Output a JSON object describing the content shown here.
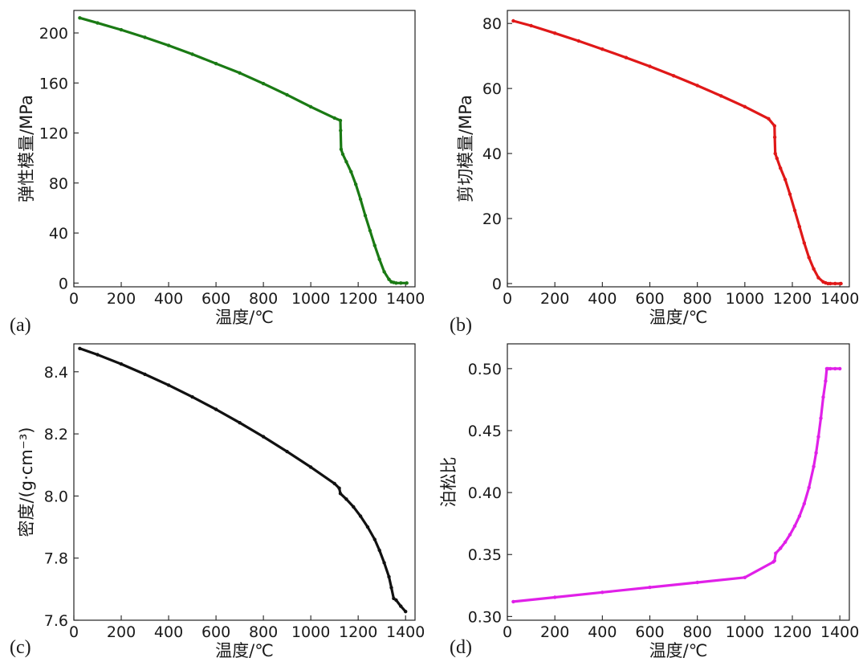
{
  "chart_data": [
    {
      "id": "a",
      "type": "line",
      "panel_label": "(a)",
      "xlabel": "温度/℃",
      "ylabel": "弹性模量/MPa",
      "xlim": [
        0,
        1440
      ],
      "ylim": [
        -3,
        218
      ],
      "xticks": [
        0,
        200,
        400,
        600,
        800,
        1000,
        1200,
        1400
      ],
      "yticks": [
        0,
        40,
        80,
        120,
        160,
        200
      ],
      "color": "#1a7a14",
      "series": [
        {
          "name": "弹性模量",
          "x": [
            25,
            100,
            200,
            300,
            400,
            500,
            600,
            700,
            800,
            900,
            1000,
            1100,
            1125,
            1126,
            1128,
            1135,
            1150,
            1170,
            1190,
            1210,
            1230,
            1250,
            1270,
            1290,
            1310,
            1330,
            1340,
            1350,
            1360,
            1380,
            1405
          ],
          "y": [
            212,
            208,
            202.5,
            196.5,
            190,
            183,
            175.5,
            168,
            159.5,
            150.5,
            141,
            132,
            130,
            122,
            107,
            103,
            97,
            89,
            79,
            67,
            54,
            42,
            30,
            19,
            9,
            3,
            1,
            0.5,
            0,
            0,
            0
          ]
        }
      ]
    },
    {
      "id": "b",
      "type": "line",
      "panel_label": "(b)",
      "xlabel": "温度/℃",
      "ylabel": "剪切模量/MPa",
      "xlim": [
        0,
        1440
      ],
      "ylim": [
        -1,
        84
      ],
      "xticks": [
        0,
        200,
        400,
        600,
        800,
        1000,
        1200,
        1400
      ],
      "yticks": [
        0,
        20,
        40,
        60,
        80
      ],
      "color": "#e01818",
      "series": [
        {
          "name": "剪切模量",
          "x": [
            25,
            100,
            200,
            300,
            400,
            500,
            600,
            700,
            800,
            900,
            1000,
            1100,
            1125,
            1126,
            1128,
            1135,
            1150,
            1170,
            1190,
            1210,
            1230,
            1250,
            1270,
            1290,
            1310,
            1330,
            1340,
            1350,
            1360,
            1380,
            1405
          ],
          "y": [
            80.8,
            79.3,
            77,
            74.6,
            72.1,
            69.5,
            66.8,
            63.9,
            60.9,
            57.7,
            54.4,
            50.7,
            48.5,
            45,
            40,
            38.5,
            35.5,
            32,
            27.5,
            22.5,
            17.5,
            12.5,
            8,
            4.5,
            1.8,
            0.5,
            0.2,
            0,
            0,
            0,
            0
          ]
        }
      ]
    },
    {
      "id": "c",
      "type": "line",
      "panel_label": "(c)",
      "xlabel": "温度/℃",
      "ylabel": "密度/(g·cm⁻³)",
      "xlim": [
        0,
        1440
      ],
      "ylim": [
        7.6,
        8.49
      ],
      "xticks": [
        0,
        200,
        400,
        600,
        800,
        1000,
        1200,
        1400
      ],
      "yticks": [
        7.6,
        7.8,
        8.0,
        8.2,
        8.4
      ],
      "ytick_decimals": 1,
      "color": "#111111",
      "series": [
        {
          "name": "密度",
          "x": [
            25,
            100,
            200,
            300,
            400,
            500,
            600,
            700,
            800,
            900,
            1000,
            1100,
            1120,
            1125,
            1150,
            1180,
            1210,
            1240,
            1270,
            1290,
            1310,
            1330,
            1340,
            1350,
            1360,
            1380,
            1400
          ],
          "y": [
            8.475,
            8.455,
            8.425,
            8.392,
            8.357,
            8.319,
            8.279,
            8.236,
            8.191,
            8.143,
            8.093,
            8.04,
            8.025,
            8.008,
            7.99,
            7.965,
            7.935,
            7.9,
            7.86,
            7.825,
            7.785,
            7.74,
            7.705,
            7.67,
            7.665,
            7.645,
            7.628
          ]
        }
      ]
    },
    {
      "id": "d",
      "type": "line",
      "panel_label": "(d)",
      "xlabel": "温度/℃",
      "ylabel": "泊松比",
      "xlim": [
        0,
        1440
      ],
      "ylim": [
        0.297,
        0.52
      ],
      "xticks": [
        0,
        200,
        400,
        600,
        800,
        1000,
        1200,
        1400
      ],
      "yticks": [
        0.3,
        0.35,
        0.4,
        0.45,
        0.5
      ],
      "ytick_decimals": 2,
      "color": "#e020e8",
      "series": [
        {
          "name": "泊松比",
          "x": [
            25,
            200,
            400,
            600,
            800,
            1000,
            1120,
            1125,
            1130,
            1150,
            1170,
            1190,
            1210,
            1230,
            1250,
            1270,
            1290,
            1300,
            1310,
            1320,
            1330,
            1340,
            1345,
            1350,
            1360,
            1380,
            1400
          ],
          "y": [
            0.312,
            0.3155,
            0.3195,
            0.3235,
            0.3275,
            0.3315,
            0.344,
            0.345,
            0.351,
            0.355,
            0.36,
            0.366,
            0.373,
            0.381,
            0.391,
            0.404,
            0.421,
            0.432,
            0.445,
            0.46,
            0.477,
            0.49,
            0.5,
            0.5,
            0.5,
            0.5,
            0.5
          ]
        }
      ]
    }
  ]
}
